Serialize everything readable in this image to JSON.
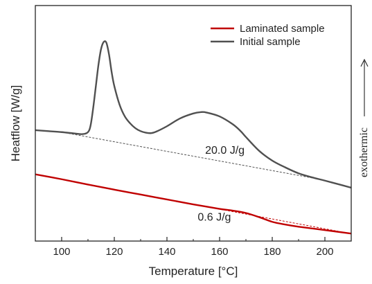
{
  "chart_data": {
    "type": "line",
    "xlabel": "Temperature [°C]",
    "ylabel": "Heatflow [W/g]",
    "xlim": [
      90,
      210
    ],
    "ylim": [
      0,
      12
    ],
    "xticks": [
      100,
      120,
      140,
      160,
      180,
      200
    ],
    "yticks_labeled": false,
    "grid": false,
    "legend": {
      "placement": "top-right",
      "entries": [
        "Laminated sample",
        "Initial sample"
      ]
    },
    "side_annotation": "exothermic",
    "colors": {
      "laminated": "#c00000",
      "initial": "#505050",
      "axes": "#222222"
    },
    "series": [
      {
        "name": "Laminated sample",
        "color": "#c00000",
        "x": [
          90,
          100,
          110,
          120,
          130,
          140,
          150,
          160,
          165,
          170,
          175,
          180,
          185,
          190,
          200,
          210
        ],
        "y": [
          3.4,
          3.15,
          2.88,
          2.62,
          2.37,
          2.12,
          1.87,
          1.64,
          1.55,
          1.43,
          1.22,
          0.98,
          0.84,
          0.73,
          0.56,
          0.38
        ]
      },
      {
        "name": "Initial sample",
        "color": "#505050",
        "x": [
          90,
          95,
          100,
          105,
          108,
          110,
          111,
          112,
          113,
          114,
          115,
          116,
          117,
          118,
          119,
          120,
          122,
          124,
          126,
          128,
          130,
          132,
          134,
          136,
          140,
          145,
          150,
          153,
          155,
          160,
          165,
          168,
          170,
          175,
          180,
          185,
          190,
          195,
          200,
          205,
          210
        ],
        "y": [
          5.65,
          5.6,
          5.55,
          5.48,
          5.45,
          5.55,
          5.9,
          6.8,
          7.9,
          9.0,
          9.8,
          10.15,
          10.1,
          9.5,
          8.6,
          7.9,
          6.95,
          6.35,
          6.0,
          5.75,
          5.6,
          5.52,
          5.5,
          5.58,
          5.85,
          6.25,
          6.5,
          6.57,
          6.55,
          6.35,
          5.95,
          5.6,
          5.3,
          4.6,
          4.1,
          3.75,
          3.45,
          3.25,
          3.08,
          2.9,
          2.72
        ]
      }
    ],
    "baselines": [
      {
        "series": "Initial sample",
        "style": "dashed",
        "x": [
          100,
          200
        ],
        "y": [
          5.55,
          3.1
        ],
        "area_label": "20.0 J/g"
      },
      {
        "series": "Laminated sample",
        "style": "dashed",
        "x": [
          105,
          205
        ],
        "y": [
          3.0,
          0.5
        ],
        "area_label": "0.6 J/g"
      }
    ]
  }
}
